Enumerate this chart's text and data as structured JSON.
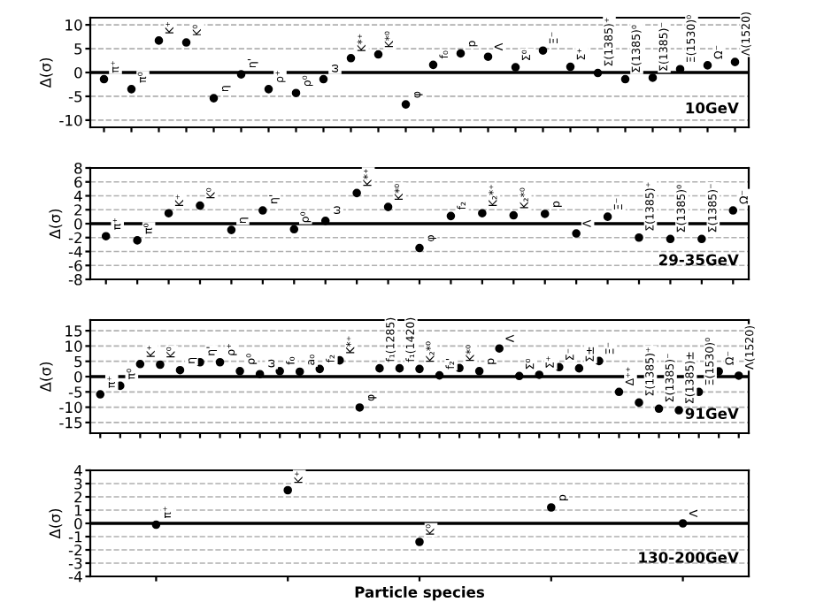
{
  "chart_data": [
    {
      "type": "scatter",
      "ylabel": "Δ(σ)",
      "categories": [
        null,
        null,
        null,
        null,
        null,
        null,
        null,
        null,
        null,
        null,
        null,
        null,
        null,
        null,
        null,
        null,
        null,
        null,
        null,
        null,
        null,
        null,
        null,
        null
      ],
      "series": [
        {
          "color": "#000000",
          "values": [
            -1.4,
            -3.5,
            6.7,
            6.3,
            -5.4,
            -0.4,
            -3.5,
            -4.3,
            -1.4,
            3.0,
            3.8,
            -6.7,
            1.6,
            4.0,
            3.3,
            1.1,
            4.6,
            1.2,
            -0.1,
            -1.4,
            -1.1,
            0.7,
            1.5,
            2.2
          ]
        }
      ],
      "ylim": [
        -11.5,
        11.5
      ],
      "yticks": [
        -10,
        -5,
        0,
        5,
        10
      ],
      "tick_labels": "y",
      "grid": "y",
      "marker": "circle",
      "ref_lines": [
        {
          "axis": "y",
          "value": 0,
          "color": "#000000"
        }
      ],
      "annotations": [
        "10GeV",
        "π⁺",
        "π⁰",
        "K⁺",
        "K⁰",
        "η",
        "η'",
        "ρ⁺",
        "ρ⁰",
        "ω",
        "K*⁺",
        "K*⁰",
        "φ",
        "f₀",
        "p",
        "Λ",
        "Σ⁰",
        "Ξ⁻",
        "Σ⁺",
        "Σ(1385)⁺",
        "Σ(1385)⁰",
        "Σ(1385)⁻",
        "Ξ(1530)⁰",
        "Ω⁻",
        "Λ(1520)"
      ]
    },
    {
      "type": "scatter",
      "ylabel": "Δ(σ)",
      "categories": [
        null,
        null,
        null,
        null,
        null,
        null,
        null,
        null,
        null,
        null,
        null,
        null,
        null,
        null,
        null,
        null,
        null,
        null,
        null,
        null,
        null
      ],
      "series": [
        {
          "color": "#000000",
          "values": [
            -1.8,
            -2.4,
            1.5,
            2.6,
            -0.9,
            1.9,
            -0.8,
            0.4,
            4.4,
            2.4,
            -3.5,
            1.1,
            1.5,
            1.2,
            1.4,
            -1.4,
            1.0,
            -2.0,
            -2.2,
            -2.2,
            1.9
          ]
        }
      ],
      "ylim": [
        -8,
        8
      ],
      "yticks": [
        -8,
        -6,
        -4,
        -2,
        0,
        2,
        4,
        6,
        8
      ],
      "tick_labels": "y",
      "grid": "y",
      "marker": "circle",
      "ref_lines": [
        {
          "axis": "y",
          "value": 0,
          "color": "#000000"
        }
      ],
      "annotations": [
        "29-35GeV",
        "π⁺",
        "π⁰",
        "K⁺",
        "K⁰",
        "η",
        "η'",
        "ρ⁰",
        "ω",
        "K*⁺",
        "K*⁰",
        "φ",
        "f₂",
        "K₂*⁺",
        "K₂*⁰",
        "p",
        "Λ",
        "Ξ⁻",
        "Σ(1385)⁺",
        "Σ(1385)⁰",
        "Σ(1385)⁻",
        "Ω⁻"
      ]
    },
    {
      "type": "scatter",
      "ylabel": "Δ(σ)",
      "categories": [
        null,
        null,
        null,
        null,
        null,
        null,
        null,
        null,
        null,
        null,
        null,
        null,
        null,
        null,
        null,
        null,
        null,
        null,
        null,
        null,
        null,
        null,
        null,
        null,
        null,
        null,
        null,
        null,
        null,
        null,
        null,
        null,
        null
      ],
      "series": [
        {
          "color": "#000000",
          "values": [
            -5.8,
            -3.0,
            4.1,
            3.9,
            2.1,
            4.7,
            4.7,
            1.8,
            0.8,
            1.8,
            1.6,
            2.5,
            5.3,
            -10.1,
            2.7,
            2.7,
            2.5,
            0.4,
            2.8,
            1.8,
            9.2,
            0.2,
            0.6,
            3.1,
            2.7,
            5.1,
            -5.0,
            -8.5,
            -10.5,
            -11.0,
            -5.0,
            1.7,
            0.3
          ]
        }
      ],
      "ylim": [
        -18.5,
        18.5
      ],
      "yticks": [
        -15,
        -10,
        -5,
        0,
        5,
        10,
        15
      ],
      "tick_labels": "y",
      "grid": "y",
      "marker": "circle",
      "ref_lines": [
        {
          "axis": "y",
          "value": 0,
          "color": "#000000"
        }
      ],
      "annotations": [
        "91GeV",
        "π⁺",
        "π⁰",
        "K⁺",
        "K⁰",
        "η",
        "η'",
        "ρ⁺",
        "ρ⁰",
        "ω",
        "f₀",
        "a₀",
        "f₂",
        "K*⁺",
        "φ",
        "f₁(1285)",
        "f₁(1420)",
        "K₂*⁰",
        "f₂'",
        "K*⁰",
        "p",
        "Λ",
        "Σ⁰",
        "Σ⁺",
        "Σ⁻",
        "Σ±",
        "Ξ⁻",
        "Δ⁺⁺",
        "Σ(1385)⁺",
        "Σ(1385)⁻",
        "Σ(1385)±",
        "Ξ(1530)⁰",
        "Ω⁻",
        "Λ(1520)"
      ]
    },
    {
      "type": "scatter",
      "ylabel": "Δ(σ)",
      "xlabel": "Particle species",
      "categories": [
        null,
        null,
        null,
        null,
        null
      ],
      "series": [
        {
          "color": "#000000",
          "values": [
            -0.1,
            2.5,
            -1.4,
            1.2,
            0.0
          ]
        }
      ],
      "ylim": [
        -4,
        4
      ],
      "yticks": [
        -4,
        -3,
        -2,
        -1,
        0,
        1,
        2,
        3,
        4
      ],
      "tick_labels": "y",
      "grid": "y",
      "marker": "circle",
      "ref_lines": [
        {
          "axis": "y",
          "value": 0,
          "color": "#000000"
        }
      ],
      "annotations": [
        "130-200GeV",
        "π⁺",
        "K⁺",
        "K⁰",
        "p",
        "Λ"
      ]
    }
  ]
}
